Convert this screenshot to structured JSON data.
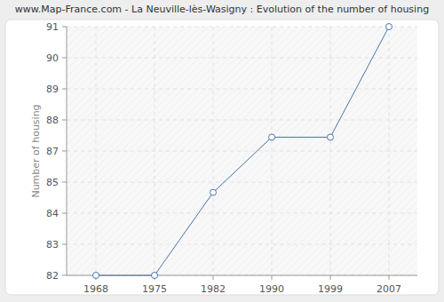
{
  "chart_data": {
    "type": "line",
    "title": "www.Map-France.com - La Neuville-lès-Wasigny : Evolution of the number of housing",
    "y_label": "Number of housing",
    "categories": [
      "1968",
      "1975",
      "1982",
      "1990",
      "1999",
      "2007"
    ],
    "values": [
      82,
      82,
      85,
      87,
      87,
      91
    ],
    "color": "#4a74a8",
    "marker": "circle",
    "ylim": [
      82,
      91
    ],
    "yticks": [
      82,
      {
        "value": 83.125,
        "label": "83"
      },
      {
        "value": 84.25,
        "label": "84"
      },
      {
        "value": 85.375,
        "label": "85"
      },
      {
        "value": 86.5,
        "label": "87"
      },
      {
        "value": 87.625,
        "label": "88"
      },
      {
        "value": 88.75,
        "label": "89"
      },
      {
        "value": 89.875,
        "label": "90"
      },
      91
    ],
    "grid": true
  }
}
